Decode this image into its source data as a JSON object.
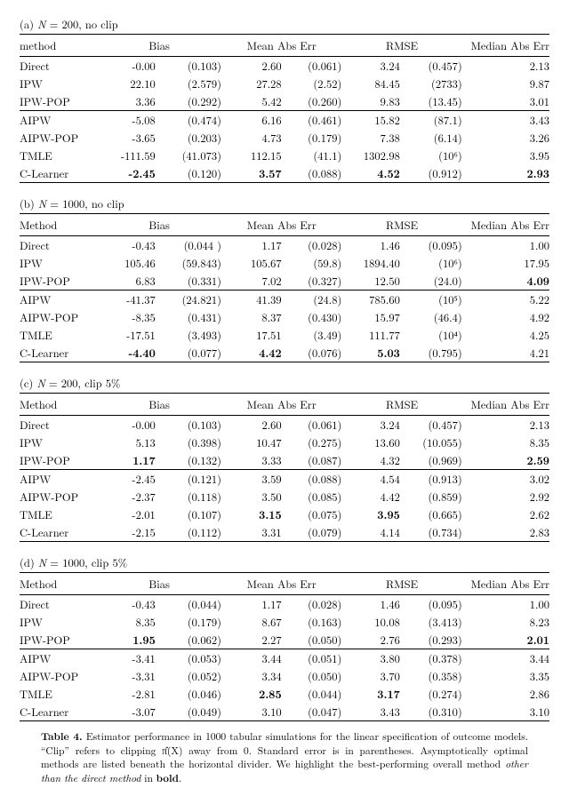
{
  "panels": [
    {
      "label_prefix": "(a)",
      "N": "N = 200",
      "clip": "no clip",
      "method_header": "method",
      "group1": [
        {
          "m": "Direct",
          "bias": "-0.00",
          "bias_se": "(0.103)",
          "mae": "2.60",
          "mae_se": "(0.061)",
          "rmse": "3.24",
          "rmse_se": "(0.457)",
          "med": "2.13",
          "bold": {}
        },
        {
          "m": "IPW",
          "bias": "22.10",
          "bias_se": "(2.579)",
          "mae": "27.28",
          "mae_se": "(2.52)",
          "rmse": "84.45",
          "rmse_se": "(2733)",
          "med": "9.87",
          "bold": {}
        },
        {
          "m": "IPW-POP",
          "bias": "3.36",
          "bias_se": "(0.292)",
          "mae": "5.42",
          "mae_se": "(0.260)",
          "rmse": "9.83",
          "rmse_se": "(13.45)",
          "med": "3.01",
          "bold": {}
        }
      ],
      "group2": [
        {
          "m": "AIPW",
          "bias": "-5.08",
          "bias_se": "(0.474)",
          "mae": "6.16",
          "mae_se": "(0.461)",
          "rmse": "15.82",
          "rmse_se": "(87.1)",
          "med": "3.43",
          "bold": {}
        },
        {
          "m": "AIPW-POP",
          "bias": "-3.65",
          "bias_se": "(0.203)",
          "mae": "4.73",
          "mae_se": "(0.179)",
          "rmse": "7.38",
          "rmse_se": "(6.14)",
          "med": "3.26",
          "bold": {}
        },
        {
          "m": "TMLE",
          "bias": "-111.59",
          "bias_se": "(41.073)",
          "mae": "112.15",
          "mae_se": "(41.1)",
          "rmse": "1302.98",
          "rmse_se": "(10⁶)",
          "med": "3.95",
          "bold": {}
        },
        {
          "m": "C-Learner",
          "bias": "-2.45",
          "bias_se": "(0.120)",
          "mae": "3.57",
          "mae_se": "(0.088)",
          "rmse": "4.52",
          "rmse_se": "(0.912)",
          "med": "2.93",
          "bold": {
            "bias": true,
            "mae": true,
            "rmse": true,
            "med": true
          }
        }
      ]
    },
    {
      "label_prefix": "(b)",
      "N": "N = 1000",
      "clip": "no clip",
      "method_header": "Method",
      "group1": [
        {
          "m": "Direct",
          "bias": "-0.43",
          "bias_se": "(0.044 )",
          "mae": "1.17",
          "mae_se": "(0.028)",
          "rmse": "1.46",
          "rmse_se": "(0.095)",
          "med": "1.00",
          "bold": {}
        },
        {
          "m": "IPW",
          "bias": "105.46",
          "bias_se": "(59.843)",
          "mae": "105.67",
          "mae_se": "(59.8)",
          "rmse": "1894.40",
          "rmse_se": "(10⁶)",
          "med": "17.95",
          "bold": {}
        },
        {
          "m": "IPW-POP",
          "bias": "6.83",
          "bias_se": "(0.331)",
          "mae": "7.02",
          "mae_se": "(0.327)",
          "rmse": "12.50",
          "rmse_se": "(24.0)",
          "med": "4.09",
          "bold": {
            "med": true
          }
        }
      ],
      "group2": [
        {
          "m": "AIPW",
          "bias": "-41.37",
          "bias_se": "(24.821)",
          "mae": "41.39",
          "mae_se": "(24.8)",
          "rmse": "785.60",
          "rmse_se": "(10⁵)",
          "med": "5.22",
          "bold": {}
        },
        {
          "m": "AIPW-POP",
          "bias": "-8.35",
          "bias_se": "(0.431)",
          "mae": "8.37",
          "mae_se": "(0.430)",
          "rmse": "15.97",
          "rmse_se": "(46.4)",
          "med": "4.92",
          "bold": {}
        },
        {
          "m": "TMLE",
          "bias": "-17.51",
          "bias_se": "(3.493)",
          "mae": "17.51",
          "mae_se": "(3.49)",
          "rmse": "111.77",
          "rmse_se": "(10⁴)",
          "med": "4.25",
          "bold": {}
        },
        {
          "m": "C-Learner",
          "bias": "-4.40",
          "bias_se": "(0.077)",
          "mae": "4.42",
          "mae_se": "(0.076)",
          "rmse": "5.03",
          "rmse_se": "(0.795)",
          "med": "4.21",
          "bold": {
            "bias": true,
            "mae": true,
            "rmse": true
          }
        }
      ]
    },
    {
      "label_prefix": "(c)",
      "N": "N = 200",
      "clip": "clip 5%",
      "method_header": "Method",
      "group1": [
        {
          "m": "Direct",
          "bias": "-0.00",
          "bias_se": "(0.103)",
          "mae": "2.60",
          "mae_se": "(0.061)",
          "rmse": "3.24",
          "rmse_se": "(0.457)",
          "med": "2.13",
          "bold": {}
        },
        {
          "m": "IPW",
          "bias": "5.13",
          "bias_se": "(0.398)",
          "mae": "10.47",
          "mae_se": "(0.275)",
          "rmse": "13.60",
          "rmse_se": "(10.055)",
          "med": "8.35",
          "bold": {}
        },
        {
          "m": "IPW-POP",
          "bias": "1.17",
          "bias_se": "(0.132)",
          "mae": "3.33",
          "mae_se": "(0.087)",
          "rmse": "4.32",
          "rmse_se": "(0.969)",
          "med": "2.59",
          "bold": {
            "bias": true,
            "med": true
          }
        }
      ],
      "group2": [
        {
          "m": "AIPW",
          "bias": "-2.45",
          "bias_se": "(0.121)",
          "mae": "3.59",
          "mae_se": "(0.088)",
          "rmse": "4.54",
          "rmse_se": "(0.913)",
          "med": "3.02",
          "bold": {}
        },
        {
          "m": "AIPW-POP",
          "bias": "-2.37",
          "bias_se": "(0.118)",
          "mae": "3.50",
          "mae_se": "(0.085)",
          "rmse": "4.42",
          "rmse_se": "(0.859)",
          "med": "2.92",
          "bold": {}
        },
        {
          "m": "TMLE",
          "bias": "-2.01",
          "bias_se": "(0.107)",
          "mae": "3.15",
          "mae_se": "(0.075)",
          "rmse": "3.95",
          "rmse_se": "(0.665)",
          "med": "2.62",
          "bold": {
            "mae": true,
            "rmse": true
          }
        },
        {
          "m": "C-Learner",
          "bias": "-2.15",
          "bias_se": "(0.112)",
          "mae": "3.31",
          "mae_se": "(0.079)",
          "rmse": "4.14",
          "rmse_se": "(0.734)",
          "med": "2.83",
          "bold": {}
        }
      ]
    },
    {
      "label_prefix": "(d)",
      "N": "N = 1000",
      "clip": "clip 5%",
      "method_header": "Method",
      "group1": [
        {
          "m": "Direct",
          "bias": "-0.43",
          "bias_se": "(0.044)",
          "mae": "1.17",
          "mae_se": "(0.028)",
          "rmse": "1.46",
          "rmse_se": "(0.095)",
          "med": "1.00",
          "bold": {}
        },
        {
          "m": "IPW",
          "bias": "8.35",
          "bias_se": "(0.179)",
          "mae": "8.67",
          "mae_se": "(0.163)",
          "rmse": "10.08",
          "rmse_se": "(3.413)",
          "med": "8.23",
          "bold": {}
        },
        {
          "m": "IPW-POP",
          "bias": "1.95",
          "bias_se": "(0.062)",
          "mae": "2.27",
          "mae_se": "(0.050)",
          "rmse": "2.76",
          "rmse_se": "(0.293)",
          "med": "2.01",
          "bold": {
            "bias": true,
            "med": true
          }
        }
      ],
      "group2": [
        {
          "m": "AIPW",
          "bias": "-3.41",
          "bias_se": "(0.053)",
          "mae": "3.44",
          "mae_se": "(0.051)",
          "rmse": "3.80",
          "rmse_se": "(0.378)",
          "med": "3.44",
          "bold": {}
        },
        {
          "m": "AIPW-POP",
          "bias": "-3.31",
          "bias_se": "(0.052)",
          "mae": "3.34",
          "mae_se": "(0.050)",
          "rmse": "3.70",
          "rmse_se": "(0.358)",
          "med": "3.35",
          "bold": {}
        },
        {
          "m": "TMLE",
          "bias": "-2.81",
          "bias_se": "(0.046)",
          "mae": "2.85",
          "mae_se": "(0.044)",
          "rmse": "3.17",
          "rmse_se": "(0.274)",
          "med": "2.86",
          "bold": {
            "mae": true,
            "rmse": true
          }
        },
        {
          "m": "C-Learner",
          "bias": "-3.07",
          "bias_se": "(0.049)",
          "mae": "3.10",
          "mae_se": "(0.047)",
          "rmse": "3.43",
          "rmse_se": "(0.310)",
          "med": "3.10",
          "bold": {}
        }
      ]
    }
  ],
  "headers": {
    "bias": "Bias",
    "mae": "Mean Abs Err",
    "rmse": "RMSE",
    "med": "Median Abs Err"
  },
  "caption": {
    "label": "Table 4.",
    "body1": "Estimator performance in 1000 tabular simulations for the linear specification of outcome models. “Clip” refers to clipping π̂(X) away from 0. Standard error is in parentheses. Asymptotically optimal methods are listed beneath the horizontal divider. We highlight the best-performing overall method ",
    "ital": "other than the direct method",
    "body2": " in ",
    "bold": "bold",
    "body3": "."
  }
}
